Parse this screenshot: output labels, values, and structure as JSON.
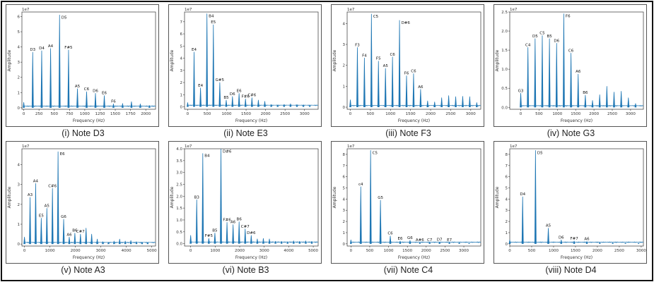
{
  "colors": {
    "line": "#1f77b4",
    "axis": "#333333",
    "frame": "#111111"
  },
  "chart_data": [
    {
      "type": "line",
      "caption": "(i) Note D3",
      "xlabel": "Frequency (Hz)",
      "ylabel": "Amplitude",
      "offset": "1e7",
      "xlim": [
        -30,
        2160
      ],
      "ylim": [
        -0.1,
        6.3
      ],
      "xticks": [
        "0",
        "250",
        "500",
        "750",
        "1000",
        "1250",
        "1500",
        "1750",
        "2000"
      ],
      "yticks": [
        "0",
        "1",
        "2",
        "3",
        "4",
        "5",
        "6"
      ],
      "peaks": [
        {
          "f": 0,
          "a": 0.35
        },
        {
          "f": 147,
          "a": 3.65,
          "label": "D3"
        },
        {
          "f": 294,
          "a": 3.75,
          "label": "D4"
        },
        {
          "f": 440,
          "a": 3.9,
          "label": "A4"
        },
        {
          "f": 587,
          "a": 6.1,
          "label": "D5"
        },
        {
          "f": 734,
          "a": 3.8,
          "label": "F#5"
        },
        {
          "f": 880,
          "a": 1.25,
          "label": "A5"
        },
        {
          "f": 1030,
          "a": 1.05,
          "label": "C6"
        },
        {
          "f": 1175,
          "a": 0.95,
          "label": "D6"
        },
        {
          "f": 1320,
          "a": 0.8,
          "label": "E6"
        },
        {
          "f": 1470,
          "a": 0.25,
          "label": "F6"
        },
        {
          "f": 1620,
          "a": 0.28
        },
        {
          "f": 1765,
          "a": 0.4
        },
        {
          "f": 1910,
          "a": 0.25
        },
        {
          "f": 2060,
          "a": 0.15
        }
      ]
    },
    {
      "type": "line",
      "caption": "(ii) Note E3",
      "xlabel": "Frequency (Hz)",
      "ylabel": "Amplitude",
      "offset": "1e7",
      "xlim": [
        -80,
        3350
      ],
      "ylim": [
        -0.2,
        7.8
      ],
      "xticks": [
        "0",
        "500",
        "1000",
        "1500",
        "2000",
        "2500",
        "3000"
      ],
      "yticks": [
        "0",
        "1",
        "2",
        "3",
        "4",
        "5",
        "6",
        "7"
      ],
      "peaks": [
        {
          "f": 0,
          "a": 0.35
        },
        {
          "f": 165,
          "a": 4.5,
          "label": "E4"
        },
        {
          "f": 330,
          "a": 1.55,
          "label": "E4"
        },
        {
          "f": 495,
          "a": 7.65,
          "label": "B4"
        },
        {
          "f": 660,
          "a": 6.75,
          "label": "E5"
        },
        {
          "f": 825,
          "a": 2.0,
          "label": "G#5"
        },
        {
          "f": 990,
          "a": 0.55,
          "label": "B5"
        },
        {
          "f": 1150,
          "a": 0.85,
          "label": "D6"
        },
        {
          "f": 1320,
          "a": 1.1,
          "label": "E6"
        },
        {
          "f": 1485,
          "a": 0.65,
          "label": "F#6"
        },
        {
          "f": 1650,
          "a": 0.75,
          "label": "C#6"
        },
        {
          "f": 1815,
          "a": 0.55
        },
        {
          "f": 1980,
          "a": 0.45
        },
        {
          "f": 2145,
          "a": 0.2
        },
        {
          "f": 2310,
          "a": 0.15
        },
        {
          "f": 2475,
          "a": 0.2
        },
        {
          "f": 2640,
          "a": 0.25
        },
        {
          "f": 2805,
          "a": 0.2
        },
        {
          "f": 2970,
          "a": 0.15
        },
        {
          "f": 3135,
          "a": 0.1
        }
      ]
    },
    {
      "type": "line",
      "caption": "(iii) Note F3",
      "xlabel": "Frequency (Hz)",
      "ylabel": "Amplitude",
      "offset": "1e7",
      "xlim": [
        -80,
        3250
      ],
      "ylim": [
        -0.1,
        4.55
      ],
      "xticks": [
        "0",
        "500",
        "1000",
        "1500",
        "2000",
        "2500",
        "3000"
      ],
      "yticks": [
        "0",
        "1",
        "2",
        "3",
        "4"
      ],
      "peaks": [
        {
          "f": 0,
          "a": 0.35
        },
        {
          "f": 175,
          "a": 2.85,
          "label": "F3"
        },
        {
          "f": 350,
          "a": 2.35,
          "label": "F4"
        },
        {
          "f": 525,
          "a": 4.45,
          "label": "C5"
        },
        {
          "f": 700,
          "a": 2.2,
          "label": "F5"
        },
        {
          "f": 875,
          "a": 1.85,
          "label": "A5"
        },
        {
          "f": 1050,
          "a": 2.4,
          "label": "C6"
        },
        {
          "f": 1225,
          "a": 4.15,
          "label": "D#6"
        },
        {
          "f": 1400,
          "a": 1.5,
          "label": "F6"
        },
        {
          "f": 1575,
          "a": 1.6,
          "label": "C6"
        },
        {
          "f": 1750,
          "a": 0.85,
          "label": "A6"
        },
        {
          "f": 1925,
          "a": 0.3
        },
        {
          "f": 2100,
          "a": 0.25
        },
        {
          "f": 2275,
          "a": 0.45
        },
        {
          "f": 2450,
          "a": 0.55
        },
        {
          "f": 2625,
          "a": 0.5
        },
        {
          "f": 2800,
          "a": 0.52
        },
        {
          "f": 2975,
          "a": 0.5
        },
        {
          "f": 3150,
          "a": 0.22
        }
      ]
    },
    {
      "type": "line",
      "caption": "(iv) Note G3",
      "xlabel": "Frequency (Hz)",
      "ylabel": "Amplitude",
      "offset": "1e7",
      "xlim": [
        -300,
        3350
      ],
      "ylim": [
        -0.05,
        2.5
      ],
      "xticks": [
        "0",
        "500",
        "1000",
        "1500",
        "2000",
        "2500",
        "3000"
      ],
      "yticks": [
        "0.0",
        "0.5",
        "1.0",
        "1.5",
        "2.0",
        "2.5"
      ],
      "peaks": [
        {
          "f": 0,
          "a": 0.37,
          "label": "G3"
        },
        {
          "f": 196,
          "a": 1.57,
          "label": "C4"
        },
        {
          "f": 392,
          "a": 1.8,
          "label": "D5"
        },
        {
          "f": 588,
          "a": 1.88,
          "label": "C5"
        },
        {
          "f": 784,
          "a": 1.8,
          "label": "B5"
        },
        {
          "f": 980,
          "a": 1.68,
          "label": "D6"
        },
        {
          "f": 1176,
          "a": 2.45,
          "label": "F6"
        },
        {
          "f": 1372,
          "a": 1.42,
          "label": "C6"
        },
        {
          "f": 1568,
          "a": 0.87,
          "label": "A6"
        },
        {
          "f": 1764,
          "a": 0.32,
          "label": "B6"
        },
        {
          "f": 1960,
          "a": 0.18
        },
        {
          "f": 2156,
          "a": 0.33
        },
        {
          "f": 2352,
          "a": 0.55
        },
        {
          "f": 2548,
          "a": 0.4
        },
        {
          "f": 2744,
          "a": 0.42
        },
        {
          "f": 2940,
          "a": 0.25
        },
        {
          "f": 3136,
          "a": 0.1
        }
      ]
    },
    {
      "type": "line",
      "caption": "(v) Note A3",
      "xlabel": "Frequency (Hz)",
      "ylabel": "Amplitude",
      "offset": "1e7",
      "xlim": [
        -100,
        5150
      ],
      "ylim": [
        -0.1,
        4.8
      ],
      "xticks": [
        "0",
        "1000",
        "2000",
        "3000",
        "4000",
        "5000"
      ],
      "yticks": [
        "0",
        "1",
        "2",
        "3",
        "4"
      ],
      "peaks": [
        {
          "f": 0,
          "a": 0.35
        },
        {
          "f": 220,
          "a": 2.35,
          "label": "A3"
        },
        {
          "f": 440,
          "a": 3.05,
          "label": "A4"
        },
        {
          "f": 660,
          "a": 1.3,
          "label": "E5"
        },
        {
          "f": 880,
          "a": 1.8,
          "label": "A5"
        },
        {
          "f": 1100,
          "a": 2.8,
          "label": "C#6"
        },
        {
          "f": 1320,
          "a": 4.65,
          "label": "E6"
        },
        {
          "f": 1540,
          "a": 1.25,
          "label": "G6"
        },
        {
          "f": 1760,
          "a": 0.35,
          "label": "A6"
        },
        {
          "f": 1980,
          "a": 0.55,
          "label": "B6"
        },
        {
          "f": 2200,
          "a": 0.5,
          "label": "C#7"
        },
        {
          "f": 2420,
          "a": 0.8
        },
        {
          "f": 2640,
          "a": 0.5
        },
        {
          "f": 2860,
          "a": 0.25
        },
        {
          "f": 3080,
          "a": 0.12
        },
        {
          "f": 3300,
          "a": 0.08
        },
        {
          "f": 3520,
          "a": 0.15
        },
        {
          "f": 3740,
          "a": 0.25
        },
        {
          "f": 3960,
          "a": 0.15
        },
        {
          "f": 4180,
          "a": 0.18
        },
        {
          "f": 4400,
          "a": 0.12
        },
        {
          "f": 4620,
          "a": 0.1
        },
        {
          "f": 4840,
          "a": 0.08
        }
      ]
    },
    {
      "type": "line",
      "caption": "(vi) Note B3",
      "xlabel": "Frequency (Hz)",
      "ylabel": "Amplitude",
      "offset": "1e7",
      "xlim": [
        -250,
        5200
      ],
      "ylim": [
        -0.1,
        4.0
      ],
      "xticks": [
        "0",
        "1000",
        "2000",
        "3000",
        "4000",
        "5000"
      ],
      "yticks": [
        "0.0",
        "0.5",
        "1.0",
        "1.5",
        "2.0",
        "2.5",
        "3.0",
        "3.5",
        "4.0"
      ],
      "peaks": [
        {
          "f": 0,
          "a": 0.35
        },
        {
          "f": 247,
          "a": 1.85,
          "label": "B3"
        },
        {
          "f": 494,
          "a": 3.8,
          "label": "B4"
        },
        {
          "f": 740,
          "a": 0.22,
          "label": "F#5"
        },
        {
          "f": 988,
          "a": 0.45,
          "label": "B5"
        },
        {
          "f": 1235,
          "a": 3.98,
          "label": "D#6"
        },
        {
          "f": 1482,
          "a": 0.9,
          "label": "F#6"
        },
        {
          "f": 1730,
          "a": 0.8,
          "label": "A6"
        },
        {
          "f": 1976,
          "a": 0.92,
          "label": "B6"
        },
        {
          "f": 2223,
          "a": 0.62,
          "label": "C#7"
        },
        {
          "f": 2470,
          "a": 0.35,
          "label": "D#6"
        },
        {
          "f": 2717,
          "a": 0.2
        },
        {
          "f": 2964,
          "a": 0.22
        },
        {
          "f": 3211,
          "a": 0.2
        },
        {
          "f": 3458,
          "a": 0.1
        },
        {
          "f": 3705,
          "a": 0.1
        },
        {
          "f": 3952,
          "a": 0.08
        },
        {
          "f": 4199,
          "a": 0.12
        },
        {
          "f": 4446,
          "a": 0.1
        },
        {
          "f": 4693,
          "a": 0.12
        },
        {
          "f": 4940,
          "a": 0.1
        }
      ]
    },
    {
      "type": "line",
      "caption": "(vii) Note C4",
      "xlabel": "Frequency (Hz)",
      "ylabel": "Amplitude",
      "offset": "1e7",
      "xlim": [
        -100,
        3450
      ],
      "ylim": [
        -0.2,
        8.5
      ],
      "xticks": [
        "0",
        "500",
        "1000",
        "1500",
        "2000",
        "2500",
        "3000"
      ],
      "yticks": [
        "0",
        "1",
        "2",
        "3",
        "4",
        "5",
        "6",
        "7",
        "8"
      ],
      "peaks": [
        {
          "f": 0,
          "a": 0.35
        },
        {
          "f": 262,
          "a": 5.1,
          "label": "c4"
        },
        {
          "f": 523,
          "a": 8.35,
          "label": "C5"
        },
        {
          "f": 785,
          "a": 3.9,
          "label": "G5"
        },
        {
          "f": 1046,
          "a": 0.7,
          "label": "C6"
        },
        {
          "f": 1308,
          "a": 0.25,
          "label": "E6"
        },
        {
          "f": 1570,
          "a": 0.3,
          "label": "G6"
        },
        {
          "f": 1831,
          "a": 0.1,
          "label": "A#6"
        },
        {
          "f": 2093,
          "a": 0.12,
          "label": "C7"
        },
        {
          "f": 2354,
          "a": 0.15,
          "label": "D7"
        },
        {
          "f": 2616,
          "a": 0.12,
          "label": "E7"
        },
        {
          "f": 2878,
          "a": 0.08
        },
        {
          "f": 3140,
          "a": 0.05
        }
      ]
    },
    {
      "type": "line",
      "caption": "(viii) Note D4",
      "xlabel": "Frequency (Hz)",
      "ylabel": "Amplitude",
      "offset": "1e7",
      "xlim": [
        0,
        3050
      ],
      "ylim": [
        -0.2,
        8.5
      ],
      "xticks": [
        "0",
        "500",
        "1000",
        "1500",
        "2000",
        "2500",
        "3000"
      ],
      "yticks": [
        "0",
        "1",
        "2",
        "3",
        "4",
        "5",
        "6",
        "7",
        "8"
      ],
      "peaks": [
        {
          "f": 0,
          "a": 0.35
        },
        {
          "f": 294,
          "a": 4.2,
          "label": "D4"
        },
        {
          "f": 587,
          "a": 8.35,
          "label": "D5"
        },
        {
          "f": 880,
          "a": 1.4,
          "label": "A5"
        },
        {
          "f": 1175,
          "a": 0.35,
          "label": "D6"
        },
        {
          "f": 1470,
          "a": 0.25,
          "label": "F#7"
        },
        {
          "f": 1760,
          "a": 0.2,
          "label": "A6"
        },
        {
          "f": 2055,
          "a": 0.1
        },
        {
          "f": 2350,
          "a": 0.08
        },
        {
          "f": 2640,
          "a": 0.06
        },
        {
          "f": 2940,
          "a": 0.05
        }
      ]
    }
  ]
}
